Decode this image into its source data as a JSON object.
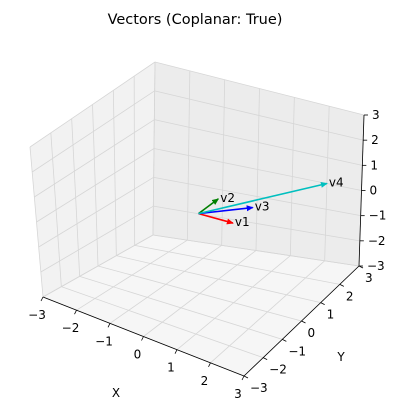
{
  "chart_data": {
    "type": "3d-quiver",
    "title": "Vectors (Coplanar: True)",
    "xlabel": "X",
    "ylabel": "Y",
    "zlabel": "",
    "xlim": [
      -3,
      3
    ],
    "ylim": [
      -3,
      3
    ],
    "zlim": [
      -3,
      3
    ],
    "xticks": [
      "−3",
      "−2",
      "−1",
      "0",
      "1",
      "2",
      "3"
    ],
    "yticks": [
      "−3",
      "−2",
      "−1",
      "0",
      "1",
      "2",
      "3"
    ],
    "zticks": [
      "−3",
      "−2",
      "−1",
      "0",
      "1",
      "2",
      "3"
    ],
    "grid": true,
    "origin": [
      0,
      0,
      0
    ],
    "vectors": [
      {
        "name": "v1",
        "x": 1,
        "y": 0,
        "z": 0,
        "color": "#ff0000"
      },
      {
        "name": "v2",
        "x": 0,
        "y": 1,
        "z": 0,
        "color": "#008000"
      },
      {
        "name": "v3",
        "x": 1,
        "y": 1,
        "z": 0,
        "color": "#0000ff"
      },
      {
        "name": "v4",
        "x": 2,
        "y": 3,
        "z": 0,
        "color": "#00bfbf"
      }
    ]
  }
}
